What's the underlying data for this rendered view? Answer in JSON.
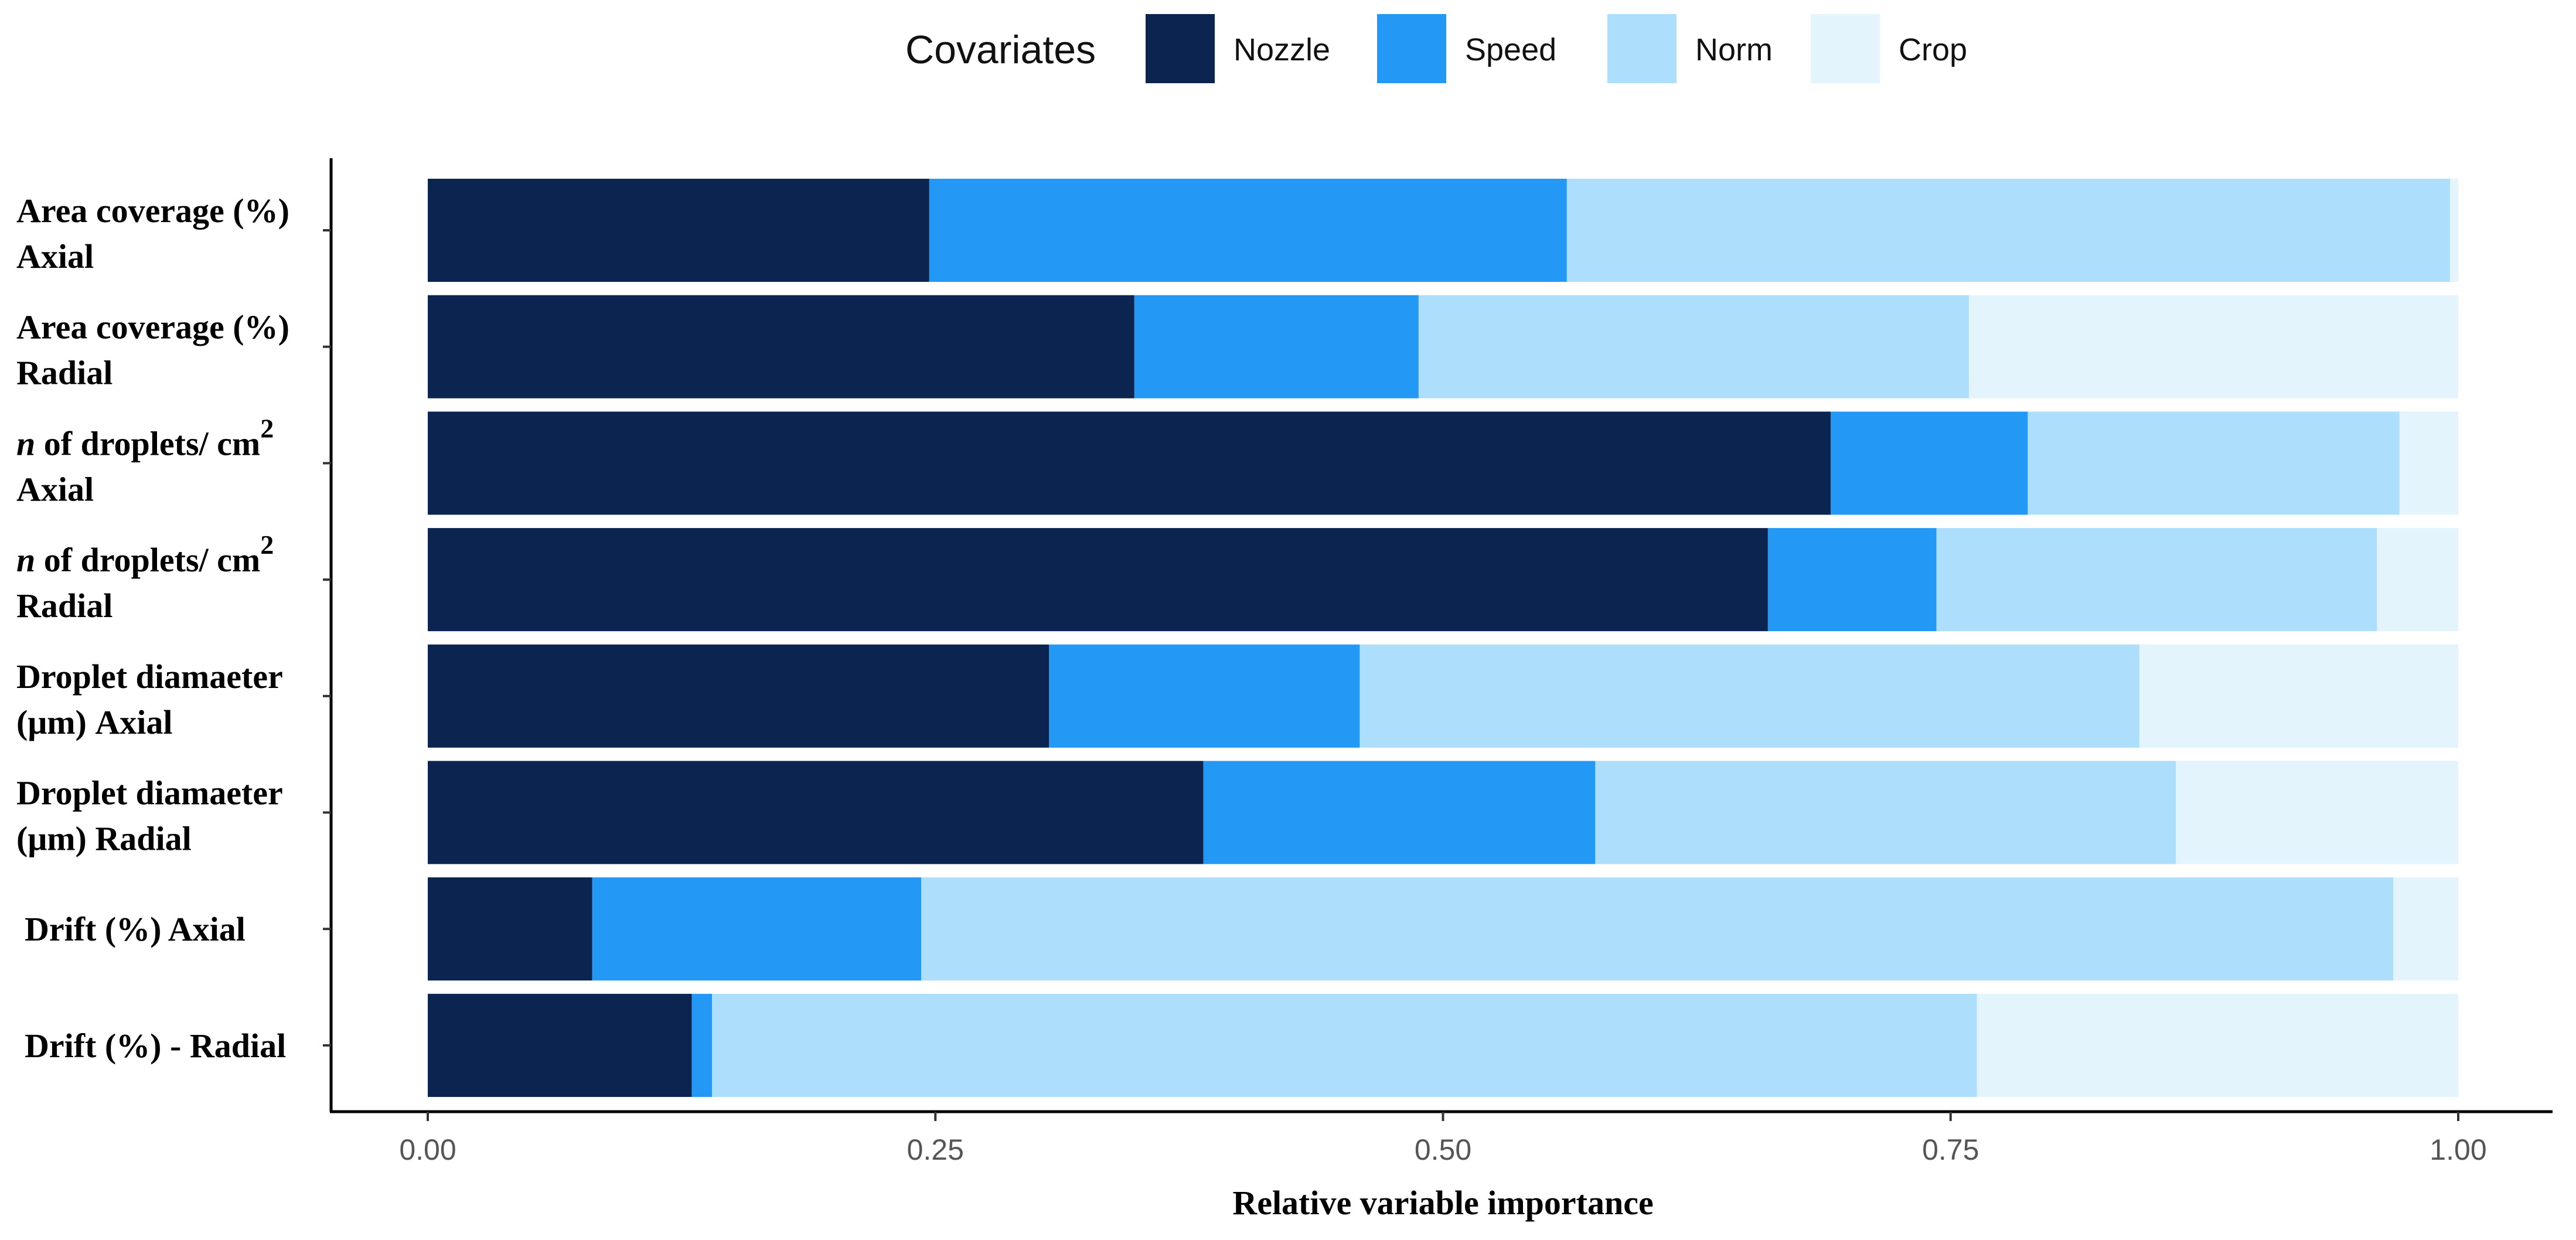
{
  "chart_data": {
    "type": "bar",
    "orientation": "horizontal",
    "stacked": true,
    "title": "",
    "legend_title": "Covariates",
    "legend_position": "top",
    "xlabel": "Relative variable importance",
    "ylabel": "",
    "xlim": [
      0,
      1
    ],
    "xticks": [
      "0.00",
      "0.25",
      "0.50",
      "0.75",
      "1.00"
    ],
    "xtick_values": [
      0,
      0.25,
      0.5,
      0.75,
      1.0
    ],
    "categories": [
      {
        "lines": [
          "Area coverage (%)",
          "Axial"
        ]
      },
      {
        "lines": [
          "Area coverage (%)",
          "Radial"
        ]
      },
      {
        "italic_prefix": "n",
        "lines": [
          " of droplets/ cm",
          "Axial"
        ],
        "superscript": "2"
      },
      {
        "italic_prefix": "n",
        "lines": [
          " of droplets/ cm",
          "Radial"
        ],
        "superscript": "2"
      },
      {
        "lines": [
          "Droplet diamaeter",
          "(μm) Axial"
        ]
      },
      {
        "lines": [
          "Droplet diamaeter",
          "(μm) Radial"
        ]
      },
      {
        "lines": [
          "Drift (%) Axial"
        ]
      },
      {
        "lines": [
          "Drift (%) - Radial"
        ]
      }
    ],
    "series": [
      {
        "name": "Nozzle",
        "color": "#0b2550",
        "values": [
          0.247,
          0.348,
          0.691,
          0.66,
          0.306,
          0.382,
          0.081,
          0.13
        ]
      },
      {
        "name": "Speed",
        "color": "#2399f5",
        "values": [
          0.314,
          0.14,
          0.097,
          0.083,
          0.153,
          0.193,
          0.162,
          0.01
        ]
      },
      {
        "name": "Norm",
        "color": "#addefc",
        "values": [
          0.435,
          0.271,
          0.183,
          0.217,
          0.384,
          0.286,
          0.725,
          0.623
        ]
      },
      {
        "name": "Crop",
        "color": "#e3f4fd",
        "values": [
          0.004,
          0.241,
          0.029,
          0.04,
          0.157,
          0.139,
          0.032,
          0.237
        ]
      }
    ]
  }
}
